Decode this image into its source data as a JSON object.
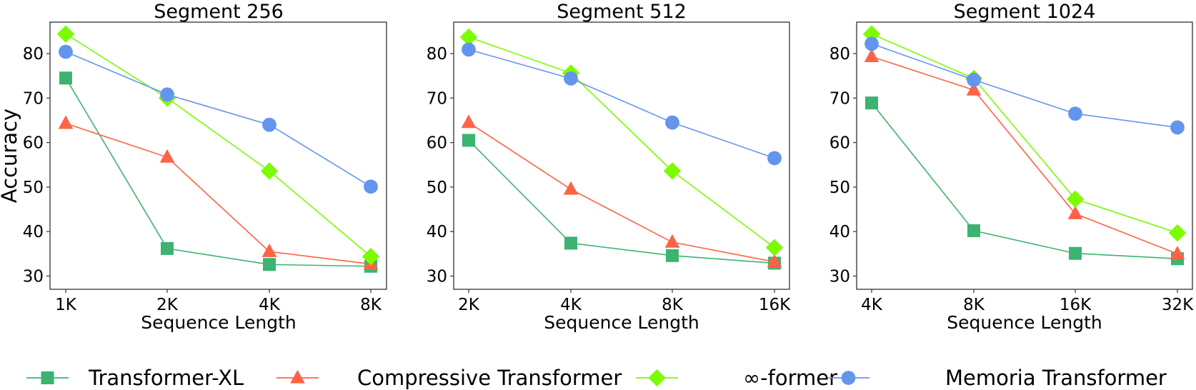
{
  "figure": {
    "ylabel": "Accuracy",
    "xlabel": "Sequence Length",
    "yticks": [
      30,
      40,
      50,
      60,
      70,
      80
    ],
    "ylim": [
      27,
      87
    ]
  },
  "legend": {
    "items": [
      {
        "label": "Transformer-XL",
        "marker": "square",
        "color": "#3CB371"
      },
      {
        "label": "Compressive Transformer",
        "marker": "triangle",
        "color": "#FF6347"
      },
      {
        "label": "∞-former",
        "marker": "diamond",
        "color": "#7CFC00"
      },
      {
        "label": "Memoria Transformer",
        "marker": "circle",
        "color": "#6495ED"
      }
    ]
  },
  "chart_data": [
    {
      "type": "line",
      "title": "Segment 256",
      "xlabel": "Sequence Length",
      "ylabel": "Accuracy",
      "categories": [
        "1K",
        "2K",
        "4K",
        "8K"
      ],
      "ylim": [
        27,
        87
      ],
      "yticks": [
        30,
        40,
        50,
        60,
        70,
        80
      ],
      "grid": false,
      "legend_position": "bottom",
      "series": [
        {
          "name": "Transformer-XL",
          "values": [
            74.5,
            36.2,
            32.6,
            32.2
          ]
        },
        {
          "name": "Compressive Transformer",
          "values": [
            64.3,
            56.7,
            35.5,
            32.7
          ]
        },
        {
          "name": "∞-former",
          "values": [
            84.4,
            70.0,
            53.6,
            34.4
          ]
        },
        {
          "name": "Memoria Transformer",
          "values": [
            80.4,
            70.8,
            64.0,
            50.1
          ]
        }
      ]
    },
    {
      "type": "line",
      "title": "Segment 512",
      "xlabel": "Sequence Length",
      "ylabel": "",
      "categories": [
        "2K",
        "4K",
        "8K",
        "16K"
      ],
      "ylim": [
        27,
        87
      ],
      "yticks": [
        30,
        40,
        50,
        60,
        70,
        80
      ],
      "grid": false,
      "legend_position": "bottom",
      "series": [
        {
          "name": "Transformer-XL",
          "values": [
            60.5,
            37.4,
            34.6,
            32.9
          ]
        },
        {
          "name": "Compressive Transformer",
          "values": [
            64.5,
            49.5,
            37.6,
            33.2
          ]
        },
        {
          "name": "∞-former",
          "values": [
            83.7,
            75.6,
            53.6,
            36.4
          ]
        },
        {
          "name": "Memoria Transformer",
          "values": [
            80.9,
            74.4,
            64.5,
            56.5
          ]
        }
      ]
    },
    {
      "type": "line",
      "title": "Segment 1024",
      "xlabel": "Sequence Length",
      "ylabel": "",
      "categories": [
        "4K",
        "8K",
        "16K",
        "32K"
      ],
      "ylim": [
        27,
        87
      ],
      "yticks": [
        30,
        40,
        50,
        60,
        70,
        80
      ],
      "grid": false,
      "legend_position": "bottom",
      "series": [
        {
          "name": "Transformer-XL",
          "values": [
            68.9,
            40.2,
            35.1,
            33.9
          ]
        },
        {
          "name": "Compressive Transformer",
          "values": [
            79.3,
            71.8,
            44.0,
            35.0
          ]
        },
        {
          "name": "∞-former",
          "values": [
            84.4,
            74.4,
            47.3,
            39.7
          ]
        },
        {
          "name": "Memoria Transformer",
          "values": [
            82.2,
            74.1,
            66.5,
            63.4
          ]
        }
      ]
    }
  ]
}
